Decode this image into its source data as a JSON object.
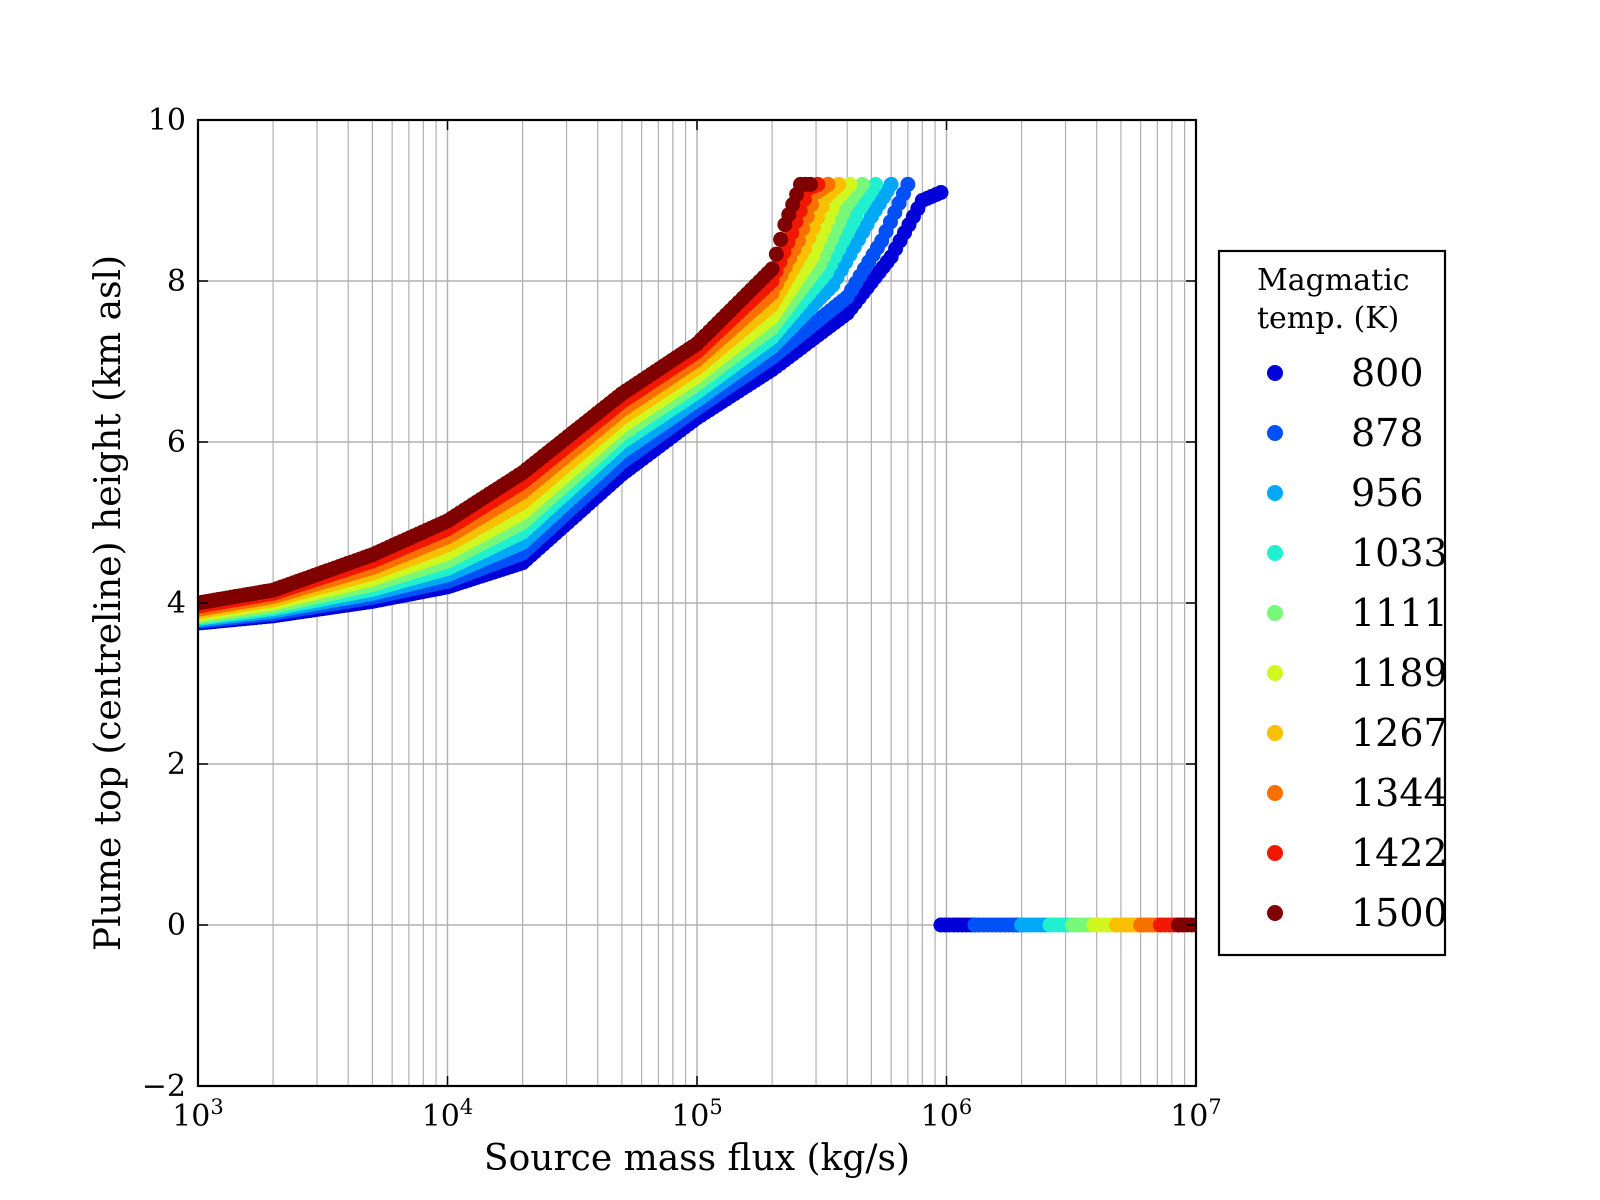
{
  "chart_data": {
    "type": "scatter",
    "xlabel": "Source mass flux (kg/s)",
    "ylabel": "Plume top (centreline) height (km asl)",
    "xscale": "log",
    "xlim": [
      1000,
      10000000
    ],
    "ylim": [
      -2,
      10
    ],
    "x_ticks": [
      {
        "label": "10",
        "exp": "3",
        "value": 1000
      },
      {
        "label": "10",
        "exp": "4",
        "value": 10000
      },
      {
        "label": "10",
        "exp": "5",
        "value": 100000
      },
      {
        "label": "10",
        "exp": "6",
        "value": 1000000
      },
      {
        "label": "10",
        "exp": "7",
        "value": 10000000
      }
    ],
    "y_ticks": [
      {
        "label": "−2",
        "value": -2
      },
      {
        "label": "0",
        "value": 0
      },
      {
        "label": "2",
        "value": 2
      },
      {
        "label": "4",
        "value": 4
      },
      {
        "label": "6",
        "value": 6
      },
      {
        "label": "8",
        "value": 8
      },
      {
        "label": "10",
        "value": 10
      }
    ],
    "grid": true,
    "legend": {
      "title_line1": "Magmatic",
      "title_line2": "temp. (K)",
      "placement": "outside-right"
    },
    "series": [
      {
        "name": "800",
        "color": "#0000d8",
        "points": [
          [
            1000,
            3.75
          ],
          [
            2000,
            3.84
          ],
          [
            5000,
            4.02
          ],
          [
            10000,
            4.2
          ],
          [
            20000,
            4.5
          ],
          [
            50000,
            5.6
          ],
          [
            100000,
            6.3
          ],
          [
            200000,
            6.9
          ],
          [
            400000,
            7.6
          ],
          [
            600000,
            8.3
          ],
          [
            800000,
            9.0
          ],
          [
            950000,
            9.1
          ]
        ],
        "zero_range": [
          950000,
          1300000
        ]
      },
      {
        "name": "878",
        "color": "#0050f8",
        "points": [
          [
            1000,
            3.77
          ],
          [
            2000,
            3.87
          ],
          [
            5000,
            4.07
          ],
          [
            10000,
            4.27
          ],
          [
            20000,
            4.62
          ],
          [
            50000,
            5.75
          ],
          [
            100000,
            6.42
          ],
          [
            200000,
            7.05
          ],
          [
            400000,
            7.8
          ],
          [
            550000,
            8.5
          ],
          [
            700000,
            9.2
          ]
        ],
        "zero_range": [
          1300000,
          2000000
        ]
      },
      {
        "name": "956",
        "color": "#00a8f8",
        "points": [
          [
            1000,
            3.79
          ],
          [
            2000,
            3.9
          ],
          [
            5000,
            4.12
          ],
          [
            10000,
            4.35
          ],
          [
            20000,
            4.75
          ],
          [
            50000,
            5.88
          ],
          [
            100000,
            6.52
          ],
          [
            200000,
            7.18
          ],
          [
            350000,
            7.95
          ],
          [
            500000,
            8.8
          ],
          [
            600000,
            9.2
          ]
        ],
        "zero_range": [
          2000000,
          2600000
        ]
      },
      {
        "name": "1033",
        "color": "#20f0d0",
        "points": [
          [
            1000,
            3.81
          ],
          [
            2000,
            3.93
          ],
          [
            5000,
            4.17
          ],
          [
            10000,
            4.43
          ],
          [
            20000,
            4.88
          ],
          [
            50000,
            6.0
          ],
          [
            100000,
            6.62
          ],
          [
            200000,
            7.3
          ],
          [
            330000,
            8.1
          ],
          [
            450000,
            8.9
          ],
          [
            520000,
            9.2
          ]
        ],
        "zero_range": [
          2600000,
          3200000
        ]
      },
      {
        "name": "1111",
        "color": "#78f878",
        "points": [
          [
            1000,
            3.83
          ],
          [
            2000,
            3.96
          ],
          [
            5000,
            4.23
          ],
          [
            10000,
            4.52
          ],
          [
            20000,
            5.0
          ],
          [
            50000,
            6.1
          ],
          [
            100000,
            6.72
          ],
          [
            200000,
            7.42
          ],
          [
            310000,
            8.2
          ],
          [
            400000,
            8.95
          ],
          [
            460000,
            9.2
          ]
        ],
        "zero_range": [
          3200000,
          3900000
        ]
      },
      {
        "name": "1189",
        "color": "#d0f820",
        "points": [
          [
            1000,
            3.86
          ],
          [
            2000,
            4.0
          ],
          [
            5000,
            4.3
          ],
          [
            10000,
            4.62
          ],
          [
            20000,
            5.12
          ],
          [
            50000,
            6.2
          ],
          [
            100000,
            6.82
          ],
          [
            200000,
            7.55
          ],
          [
            290000,
            8.3
          ],
          [
            360000,
            9.0
          ],
          [
            410000,
            9.2
          ]
        ],
        "zero_range": [
          3900000,
          4800000
        ]
      },
      {
        "name": "1267",
        "color": "#f8c000",
        "points": [
          [
            1000,
            3.89
          ],
          [
            2000,
            4.04
          ],
          [
            5000,
            4.37
          ],
          [
            10000,
            4.72
          ],
          [
            20000,
            5.25
          ],
          [
            50000,
            6.3
          ],
          [
            100000,
            6.92
          ],
          [
            200000,
            7.7
          ],
          [
            270000,
            8.4
          ],
          [
            330000,
            9.05
          ],
          [
            370000,
            9.2
          ]
        ],
        "zero_range": [
          4800000,
          6000000
        ]
      },
      {
        "name": "1344",
        "color": "#f87000",
        "points": [
          [
            1000,
            3.92
          ],
          [
            2000,
            4.08
          ],
          [
            5000,
            4.44
          ],
          [
            10000,
            4.82
          ],
          [
            20000,
            5.38
          ],
          [
            50000,
            6.4
          ],
          [
            100000,
            7.02
          ],
          [
            200000,
            7.85
          ],
          [
            255000,
            8.5
          ],
          [
            300000,
            9.1
          ],
          [
            335000,
            9.2
          ]
        ],
        "zero_range": [
          6000000,
          7200000
        ]
      },
      {
        "name": "1422",
        "color": "#f01800",
        "points": [
          [
            1000,
            3.96
          ],
          [
            2000,
            4.12
          ],
          [
            5000,
            4.52
          ],
          [
            10000,
            4.92
          ],
          [
            20000,
            5.5
          ],
          [
            50000,
            6.5
          ],
          [
            100000,
            7.12
          ],
          [
            200000,
            8.0
          ],
          [
            240000,
            8.6
          ],
          [
            280000,
            9.15
          ],
          [
            305000,
            9.2
          ]
        ],
        "zero_range": [
          7200000,
          8500000
        ]
      },
      {
        "name": "1500",
        "color": "#800000",
        "points": [
          [
            1000,
            4.0
          ],
          [
            2000,
            4.16
          ],
          [
            5000,
            4.6
          ],
          [
            10000,
            5.02
          ],
          [
            20000,
            5.62
          ],
          [
            50000,
            6.6
          ],
          [
            100000,
            7.22
          ],
          [
            200000,
            8.15
          ],
          [
            225000,
            8.7
          ],
          [
            260000,
            9.2
          ],
          [
            285000,
            9.2
          ]
        ],
        "zero_range": [
          8500000,
          10000000
        ]
      }
    ]
  }
}
